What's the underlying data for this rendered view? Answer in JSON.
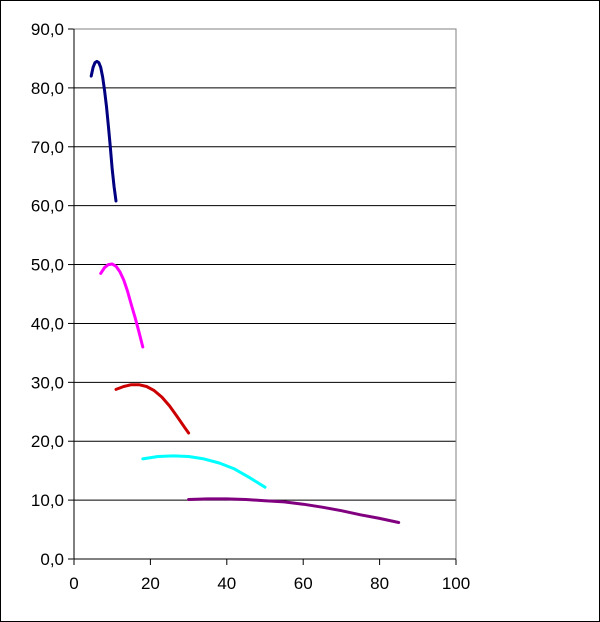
{
  "chart_data": {
    "type": "line",
    "title": "",
    "xlabel": "",
    "ylabel": "",
    "xlim": [
      0,
      100
    ],
    "ylim": [
      0,
      90
    ],
    "x_ticks": [
      "0",
      "20",
      "40",
      "60",
      "80",
      "100"
    ],
    "y_ticks": [
      "0,0",
      "10,0",
      "20,0",
      "30,0",
      "40,0",
      "50,0",
      "60,0",
      "70,0",
      "80,0",
      "90,0"
    ],
    "grid": "horizontal",
    "legend": "none",
    "series": [
      {
        "color": "#000080",
        "x": [
          4.5,
          5,
          5.5,
          6,
          6.5,
          7,
          7.5,
          8,
          8.5,
          9,
          9.5,
          10,
          10.5,
          11
        ],
        "y": [
          82.0,
          83.5,
          84.3,
          84.5,
          84.3,
          83.5,
          81.8,
          79.5,
          76.8,
          73.5,
          70.0,
          66.2,
          63.2,
          60.8
        ]
      },
      {
        "color": "#FF00FF",
        "x": [
          7,
          8,
          9,
          10,
          11,
          12,
          13,
          14,
          15,
          16,
          17,
          18
        ],
        "y": [
          48.5,
          49.5,
          50.0,
          50.1,
          49.7,
          48.8,
          47.4,
          45.5,
          43.2,
          41.0,
          38.6,
          36.0
        ]
      },
      {
        "color": "#CC0000",
        "x": [
          11,
          13,
          15,
          17,
          19,
          21,
          23,
          25,
          27,
          29,
          30
        ],
        "y": [
          28.8,
          29.3,
          29.6,
          29.6,
          29.3,
          28.6,
          27.5,
          26.0,
          24.2,
          22.3,
          21.4
        ]
      },
      {
        "color": "#00FFFF",
        "x": [
          18,
          22,
          26,
          30,
          34,
          38,
          42,
          46,
          50
        ],
        "y": [
          17.0,
          17.4,
          17.5,
          17.4,
          17.0,
          16.3,
          15.3,
          13.8,
          12.2
        ]
      },
      {
        "color": "#800080",
        "x": [
          30,
          35,
          40,
          45,
          50,
          55,
          60,
          65,
          70,
          75,
          80,
          85
        ],
        "y": [
          10.1,
          10.2,
          10.2,
          10.1,
          9.9,
          9.7,
          9.3,
          8.8,
          8.2,
          7.5,
          6.9,
          6.2
        ]
      }
    ]
  }
}
